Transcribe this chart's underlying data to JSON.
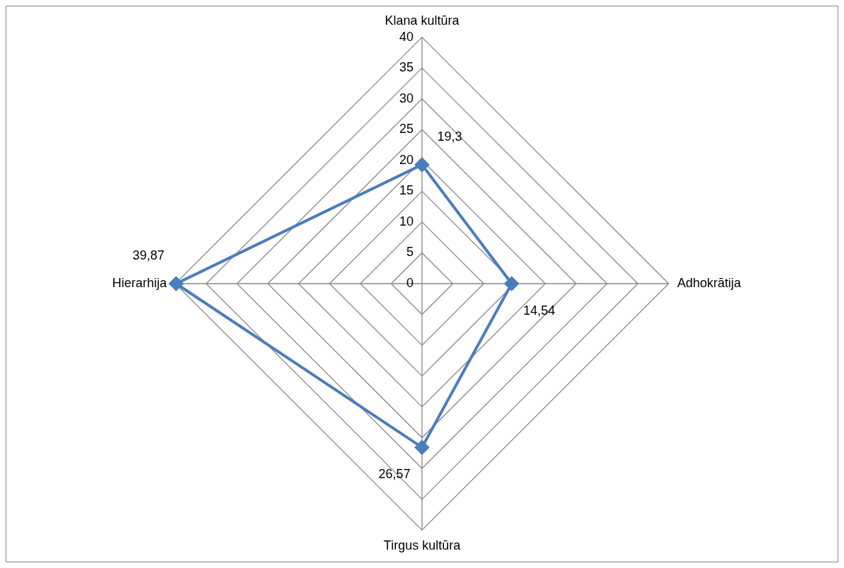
{
  "chart_data": {
    "type": "radar",
    "categories": [
      "Klana kultūra",
      "Adhokrātija",
      "Tirgus kultūra",
      "Hierarhija"
    ],
    "series": [
      {
        "color": "#4a7ebb",
        "values": [
          19.3,
          14.54,
          26.57,
          39.87
        ],
        "value_labels": [
          "19,3",
          "14,54",
          "26,57",
          "39,87"
        ]
      }
    ],
    "ylim": [
      0,
      40
    ],
    "yticks": [
      0,
      5,
      10,
      15,
      20,
      25,
      30,
      35,
      40
    ],
    "grid": true,
    "legend": false,
    "marker": "diamond",
    "line_style": "solid"
  }
}
